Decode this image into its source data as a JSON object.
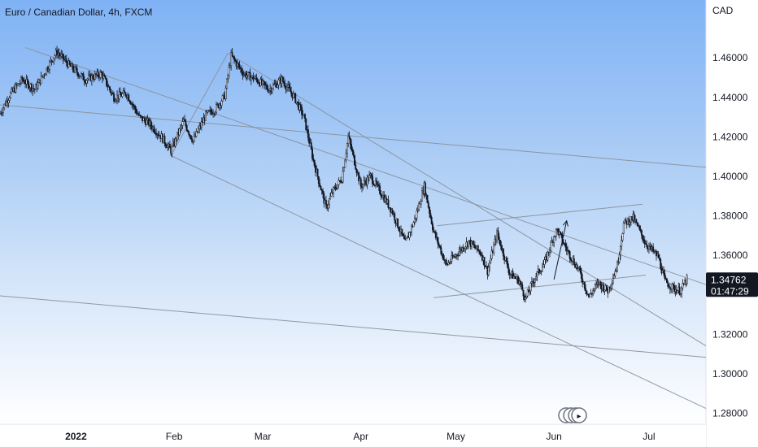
{
  "title": "Euro / Canadian Dollar, 4h, FXCM",
  "currency": "CAD",
  "colors": {
    "candle": "#131722",
    "line": "#8a8f99",
    "badge": "#131722",
    "badge_text": "#ffffff"
  },
  "price_badge": {
    "price": "1.34762",
    "countdown": "01:47:29"
  },
  "icons": [
    "grid-icon"
  ],
  "chart_data": {
    "type": "candlestick",
    "title": "Euro / Canadian Dollar, 4h, FXCM",
    "y_ticks": [
      "1.46000",
      "1.44000",
      "1.42000",
      "1.40000",
      "1.38000",
      "1.36000",
      "1.32000",
      "1.30000",
      "1.28000"
    ],
    "y_tick_values": [
      1.46,
      1.44,
      1.42,
      1.4,
      1.38,
      1.36,
      1.32,
      1.3,
      1.28
    ],
    "x_ticks": [
      "2022",
      "Feb",
      "Mar",
      "Apr",
      "May",
      "Jun",
      "Jul"
    ],
    "x_tick_dates": [
      "2022-01-01",
      "2022-02-01",
      "2022-03-01",
      "2022-04-01",
      "2022-05-01",
      "2022-06-01",
      "2022-07-01"
    ],
    "ylim": [
      1.2745,
      1.4893
    ],
    "xlim": [
      "2021-12-08",
      "2022-07-19"
    ],
    "last_price": 1.34762,
    "price_path": [
      [
        "2021-12-08",
        1.432
      ],
      [
        "2021-12-11",
        1.441
      ],
      [
        "2021-12-15",
        1.449
      ],
      [
        "2021-12-19",
        1.444
      ],
      [
        "2021-12-24",
        1.458
      ],
      [
        "2021-12-26",
        1.463
      ],
      [
        "2021-12-30",
        1.456
      ],
      [
        "2022-01-04",
        1.449
      ],
      [
        "2022-01-09",
        1.452
      ],
      [
        "2022-01-13",
        1.44
      ],
      [
        "2022-01-17",
        1.442
      ],
      [
        "2022-01-21",
        1.43
      ],
      [
        "2022-01-24",
        1.427
      ],
      [
        "2022-01-28",
        1.42
      ],
      [
        "2022-01-31",
        1.413
      ],
      [
        "2022-02-04",
        1.428
      ],
      [
        "2022-02-07",
        1.418
      ],
      [
        "2022-02-11",
        1.431
      ],
      [
        "2022-02-14",
        1.434
      ],
      [
        "2022-02-17",
        1.441
      ],
      [
        "2022-02-19",
        1.461
      ],
      [
        "2022-02-23",
        1.452
      ],
      [
        "2022-02-27",
        1.449
      ],
      [
        "2022-03-03",
        1.444
      ],
      [
        "2022-03-07",
        1.449
      ],
      [
        "2022-03-11",
        1.44
      ],
      [
        "2022-03-14",
        1.43
      ],
      [
        "2022-03-17",
        1.408
      ],
      [
        "2022-03-21",
        1.384
      ],
      [
        "2022-03-23",
        1.392
      ],
      [
        "2022-03-26",
        1.399
      ],
      [
        "2022-03-28",
        1.42
      ],
      [
        "2022-04-01",
        1.395
      ],
      [
        "2022-04-04",
        1.4
      ],
      [
        "2022-04-08",
        1.39
      ],
      [
        "2022-04-11",
        1.382
      ],
      [
        "2022-04-15",
        1.366
      ],
      [
        "2022-04-18",
        1.378
      ],
      [
        "2022-04-21",
        1.395
      ],
      [
        "2022-04-24",
        1.372
      ],
      [
        "2022-04-28",
        1.355
      ],
      [
        "2022-05-02",
        1.362
      ],
      [
        "2022-05-05",
        1.367
      ],
      [
        "2022-05-09",
        1.361
      ],
      [
        "2022-05-11",
        1.352
      ],
      [
        "2022-05-14",
        1.371
      ],
      [
        "2022-05-18",
        1.351
      ],
      [
        "2022-05-21",
        1.347
      ],
      [
        "2022-05-23",
        1.338
      ],
      [
        "2022-05-26",
        1.349
      ],
      [
        "2022-05-29",
        1.356
      ],
      [
        "2022-06-01",
        1.37
      ],
      [
        "2022-06-02",
        1.373
      ],
      [
        "2022-06-05",
        1.363
      ],
      [
        "2022-06-09",
        1.352
      ],
      [
        "2022-06-12",
        1.339
      ],
      [
        "2022-06-15",
        1.346
      ],
      [
        "2022-06-18",
        1.342
      ],
      [
        "2022-06-21",
        1.355
      ],
      [
        "2022-06-23",
        1.376
      ],
      [
        "2022-06-26",
        1.379
      ],
      [
        "2022-06-30",
        1.366
      ],
      [
        "2022-07-04",
        1.359
      ],
      [
        "2022-07-06",
        1.347
      ],
      [
        "2022-07-09",
        1.343
      ],
      [
        "2022-07-11",
        1.342
      ],
      [
        "2022-07-13",
        1.348
      ]
    ],
    "trendlines": [
      {
        "start": [
          "2021-12-16",
          1.4652
        ],
        "end": [
          "2022-07-19",
          1.3452
        ]
      },
      {
        "start": [
          "2022-02-18",
          1.4624
        ],
        "end": [
          "2022-07-19",
          1.3142
        ]
      },
      {
        "start": [
          "2021-12-08",
          1.4362
        ],
        "end": [
          "2022-07-19",
          1.4046
        ]
      },
      {
        "start": [
          "2022-01-31",
          1.4105
        ],
        "end": [
          "2022-07-19",
          1.2825
        ]
      },
      {
        "start": [
          "2021-12-08",
          1.3395
        ],
        "end": [
          "2022-07-19",
          1.3084
        ]
      },
      {
        "start": [
          "2022-04-24",
          1.3386
        ],
        "end": [
          "2022-06-30",
          1.35
        ]
      },
      {
        "start": [
          "2022-04-25",
          1.375
        ],
        "end": [
          "2022-06-29",
          1.3859
        ]
      },
      {
        "start": [
          "2022-01-31",
          1.4105
        ],
        "end": [
          "2022-02-18",
          1.4624
        ]
      }
    ],
    "projection_arrow": {
      "start": [
        "2022-06-01",
        1.3478
      ],
      "end": [
        "2022-06-05",
        1.3775
      ]
    }
  }
}
